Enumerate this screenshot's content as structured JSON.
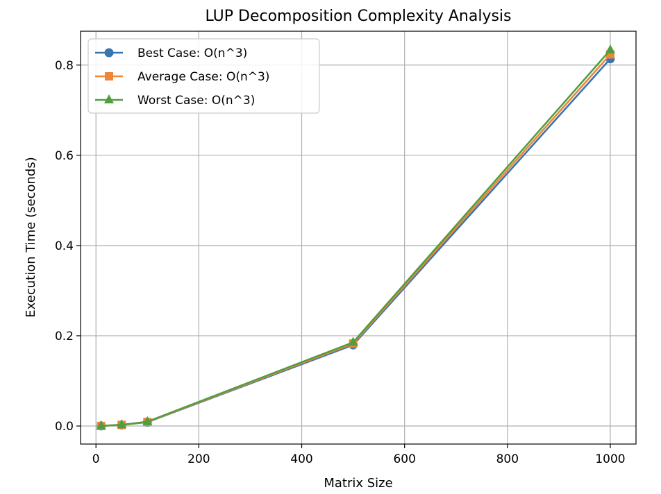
{
  "chart_data": {
    "type": "line",
    "title": "LUP Decomposition Complexity Analysis",
    "xlabel": "Matrix Size",
    "ylabel": "Execution Time (seconds)",
    "x": [
      10,
      50,
      100,
      500,
      1000
    ],
    "xlim": [
      -30,
      1050
    ],
    "ylim": [
      -0.04,
      0.875
    ],
    "xticks": [
      0,
      200,
      400,
      600,
      800,
      1000
    ],
    "xtick_labels": [
      "0",
      "200",
      "400",
      "600",
      "800",
      "1000"
    ],
    "yticks": [
      0.0,
      0.2,
      0.4,
      0.6,
      0.8
    ],
    "ytick_labels": [
      "0.0",
      "0.2",
      "0.4",
      "0.6",
      "0.8"
    ],
    "grid": true,
    "legend_position": "top-left",
    "series": [
      {
        "name": "Best Case: O(n^3)",
        "color": "#3b75af",
        "marker": "circle",
        "values": [
          0.0002,
          0.0023,
          0.0085,
          0.1797,
          0.8138
        ]
      },
      {
        "name": "Average Case: O(n^3)",
        "color": "#ef8636",
        "marker": "square",
        "values": [
          0.0002,
          0.0025,
          0.009,
          0.1827,
          0.8236
        ]
      },
      {
        "name": "Worst Case: O(n^3)",
        "color": "#519e3e",
        "marker": "triangle",
        "values": [
          0.0002,
          0.0027,
          0.0096,
          0.1854,
          0.8335
        ]
      }
    ]
  }
}
